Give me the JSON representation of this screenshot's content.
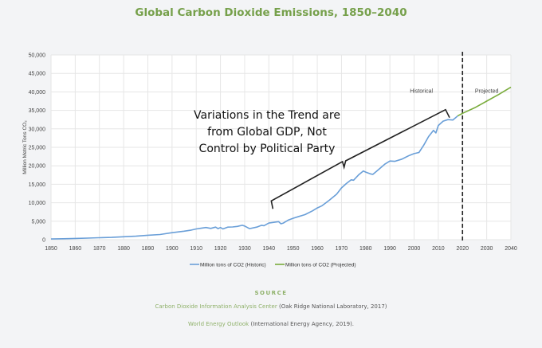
{
  "chart_data": {
    "type": "line",
    "title": "Global Carbon Dioxide Emissions, 1850–2040",
    "xlabel": "",
    "ylabel": "Million Metric Tons CO₂",
    "xlim": [
      1850,
      2040
    ],
    "ylim": [
      0,
      50000
    ],
    "grid": true,
    "x_ticks": [
      "1850",
      "1860",
      "1870",
      "1880",
      "1890",
      "1900",
      "1910",
      "1920",
      "1930",
      "1940",
      "1950",
      "1960",
      "1970",
      "1980",
      "1990",
      "2000",
      "2010",
      "2020",
      "2030",
      "2040"
    ],
    "y_ticks": [
      "0",
      "5,000",
      "10,000",
      "15,000",
      "20,000",
      "25,000",
      "30,000",
      "35,000",
      "40,000",
      "45,000",
      "50,000"
    ],
    "legend_position": "bottom",
    "series": [
      {
        "name": "Million tons of CO2 (Historic)",
        "color": "#6a9fd8",
        "x": [
          1850,
          1855,
          1860,
          1865,
          1870,
          1875,
          1880,
          1885,
          1890,
          1895,
          1900,
          1905,
          1908,
          1910,
          1912,
          1914,
          1916,
          1918,
          1919,
          1920,
          1921,
          1923,
          1925,
          1927,
          1929,
          1930,
          1932,
          1935,
          1937,
          1938,
          1940,
          1942,
          1944,
          1945,
          1946,
          1948,
          1950,
          1952,
          1955,
          1958,
          1960,
          1962,
          1965,
          1968,
          1970,
          1972,
          1974,
          1975,
          1977,
          1979,
          1980,
          1982,
          1983,
          1985,
          1988,
          1990,
          1992,
          1995,
          1998,
          2000,
          2002,
          2004,
          2006,
          2008,
          2009,
          2010,
          2012,
          2014,
          2016,
          2018
        ],
        "y": [
          200,
          260,
          350,
          430,
          530,
          620,
          800,
          950,
          1200,
          1400,
          1900,
          2300,
          2600,
          2900,
          3100,
          3300,
          3050,
          3400,
          3000,
          3300,
          2900,
          3400,
          3450,
          3600,
          3900,
          3700,
          3000,
          3400,
          3900,
          3800,
          4500,
          4700,
          4900,
          4300,
          4500,
          5300,
          5800,
          6200,
          6800,
          7800,
          8600,
          9200,
          10700,
          12300,
          14000,
          15200,
          16200,
          16100,
          17500,
          18600,
          18300,
          17800,
          17700,
          18800,
          20500,
          21300,
          21200,
          21800,
          22800,
          23300,
          23600,
          25600,
          27900,
          29600,
          28900,
          30900,
          32100,
          32500,
          32400,
          33500
        ]
      },
      {
        "name": "Million tons of CO2 (Projected)",
        "color": "#7aac3c",
        "x": [
          2018,
          2020,
          2025,
          2030,
          2035,
          2040
        ],
        "y": [
          33500,
          34200,
          35700,
          37500,
          39300,
          41300
        ]
      }
    ],
    "annotations": {
      "divider_year": 2020,
      "region_left": "Historical",
      "region_right": "Projected",
      "callout_lines": [
        "Variations in the Trend are",
        "from Global GDP, Not",
        "Control by Political Party"
      ],
      "bracket_from": [
        1941,
        10500
      ],
      "bracket_to": [
        2013,
        35200
      ]
    }
  },
  "source": {
    "heading": "SOURCE",
    "lines": [
      {
        "link": "Carbon Dioxide Information Analysis Center",
        "rest": " (Oak Ridge National Laboratory, 2017)"
      },
      {
        "link": "World Energy Outlook",
        "rest": " (International Energy Agency, 2019)."
      }
    ],
    "link_color": "#8fb16a"
  }
}
